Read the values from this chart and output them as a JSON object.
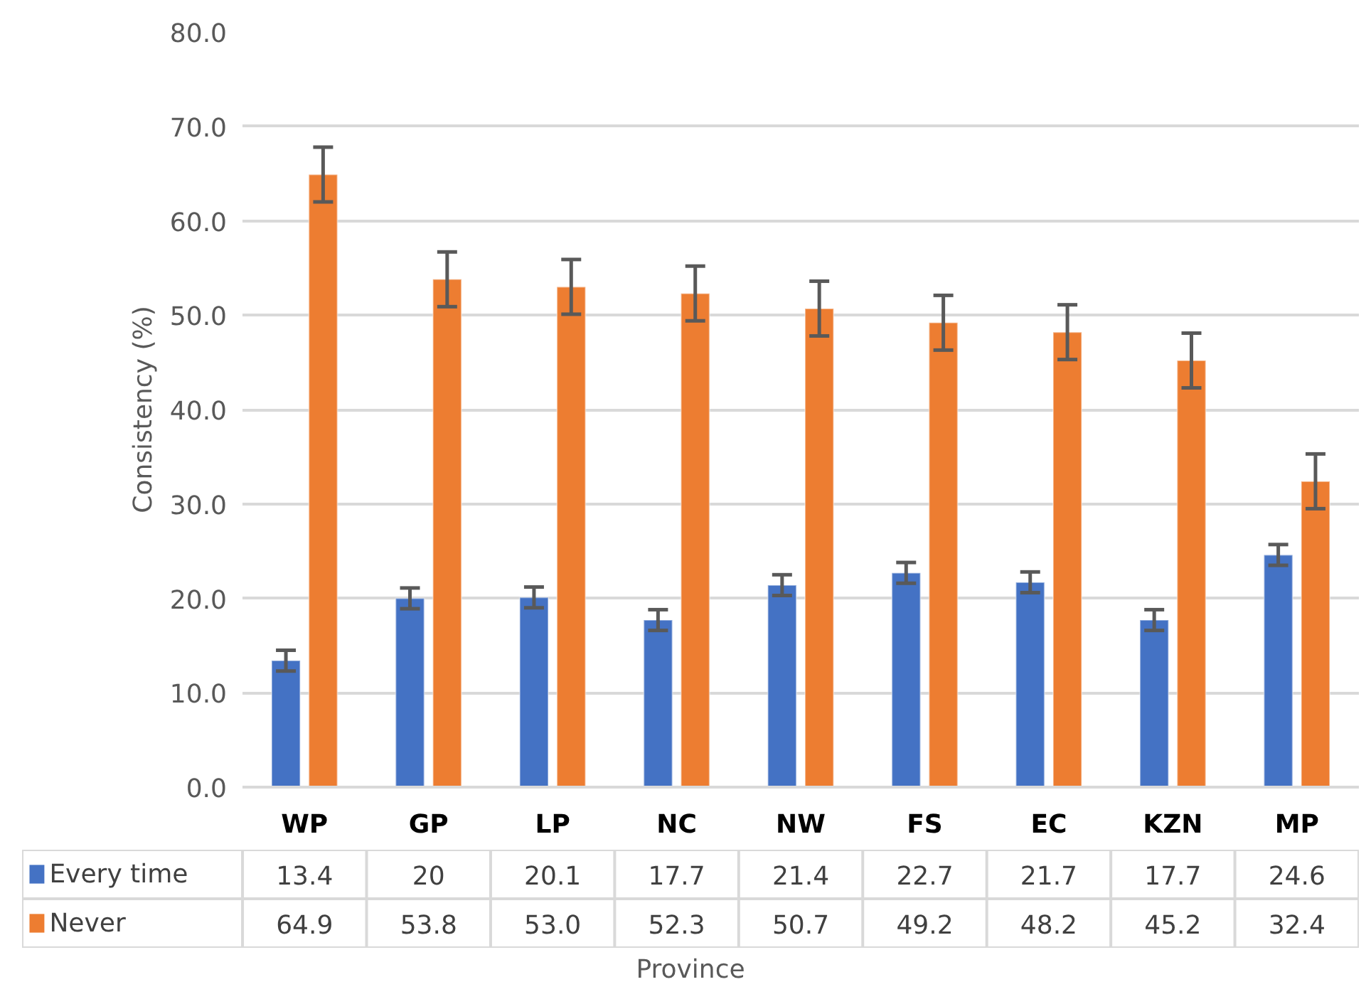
{
  "chart_data": {
    "type": "bar",
    "xlabel": "Province",
    "ylabel": "Consistency (%)",
    "categories": [
      "WP",
      "GP",
      "LP",
      "NC",
      "NW",
      "FS",
      "EC",
      "KZN",
      "MP"
    ],
    "series": [
      {
        "name": "Every time",
        "color": "#4472c4",
        "values": [
          13.4,
          20,
          20.1,
          17.7,
          21.4,
          22.7,
          21.7,
          17.7,
          24.6
        ],
        "value_labels": [
          "13.4",
          "20",
          "20.1",
          "17.7",
          "21.4",
          "22.7",
          "21.7",
          "17.7",
          "24.6"
        ],
        "errors": [
          1.1,
          1.1,
          1.1,
          1.1,
          1.1,
          1.1,
          1.1,
          1.1,
          1.1
        ]
      },
      {
        "name": "Never",
        "color": "#ed7d31",
        "values": [
          64.9,
          53.8,
          53.0,
          52.3,
          50.7,
          49.2,
          48.2,
          45.2,
          32.4
        ],
        "value_labels": [
          "64.9",
          "53.8",
          "53.0",
          "52.3",
          "50.7",
          "49.2",
          "48.2",
          "45.2",
          "32.4"
        ],
        "errors": [
          2.9,
          2.9,
          2.9,
          2.9,
          2.9,
          2.9,
          2.9,
          2.9,
          2.9
        ]
      }
    ],
    "ylim": [
      0,
      80
    ],
    "yticks": [
      {
        "value": 0,
        "label": "0.0"
      },
      {
        "value": 10,
        "label": "10.0"
      },
      {
        "value": 20,
        "label": "20.0"
      },
      {
        "value": 30,
        "label": "30.0"
      },
      {
        "value": 40,
        "label": "40.0"
      },
      {
        "value": 50,
        "label": "50.0"
      },
      {
        "value": 60,
        "label": "60.0"
      },
      {
        "value": 70,
        "label": "70.0"
      },
      {
        "value": 80,
        "label": "80.0"
      }
    ],
    "grid": "y",
    "legend": "bottom left",
    "tick_labels": true
  }
}
